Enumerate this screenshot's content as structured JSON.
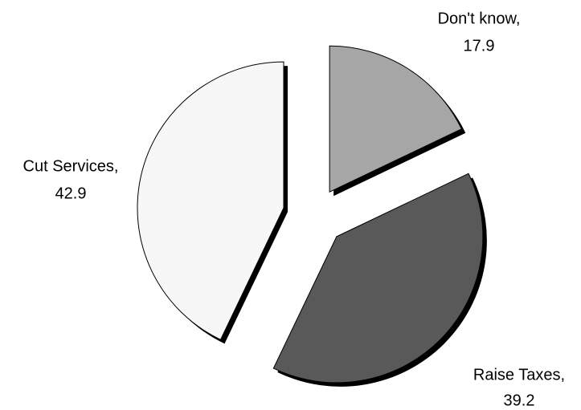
{
  "chart_data": {
    "type": "pie",
    "categories": [
      "Don't know,",
      "Raise Taxes,",
      "Cut Services,"
    ],
    "values": [
      17.9,
      39.2,
      42.9
    ],
    "colors": [
      "#a6a6a6",
      "#595959",
      "#f7f7f7"
    ]
  }
}
